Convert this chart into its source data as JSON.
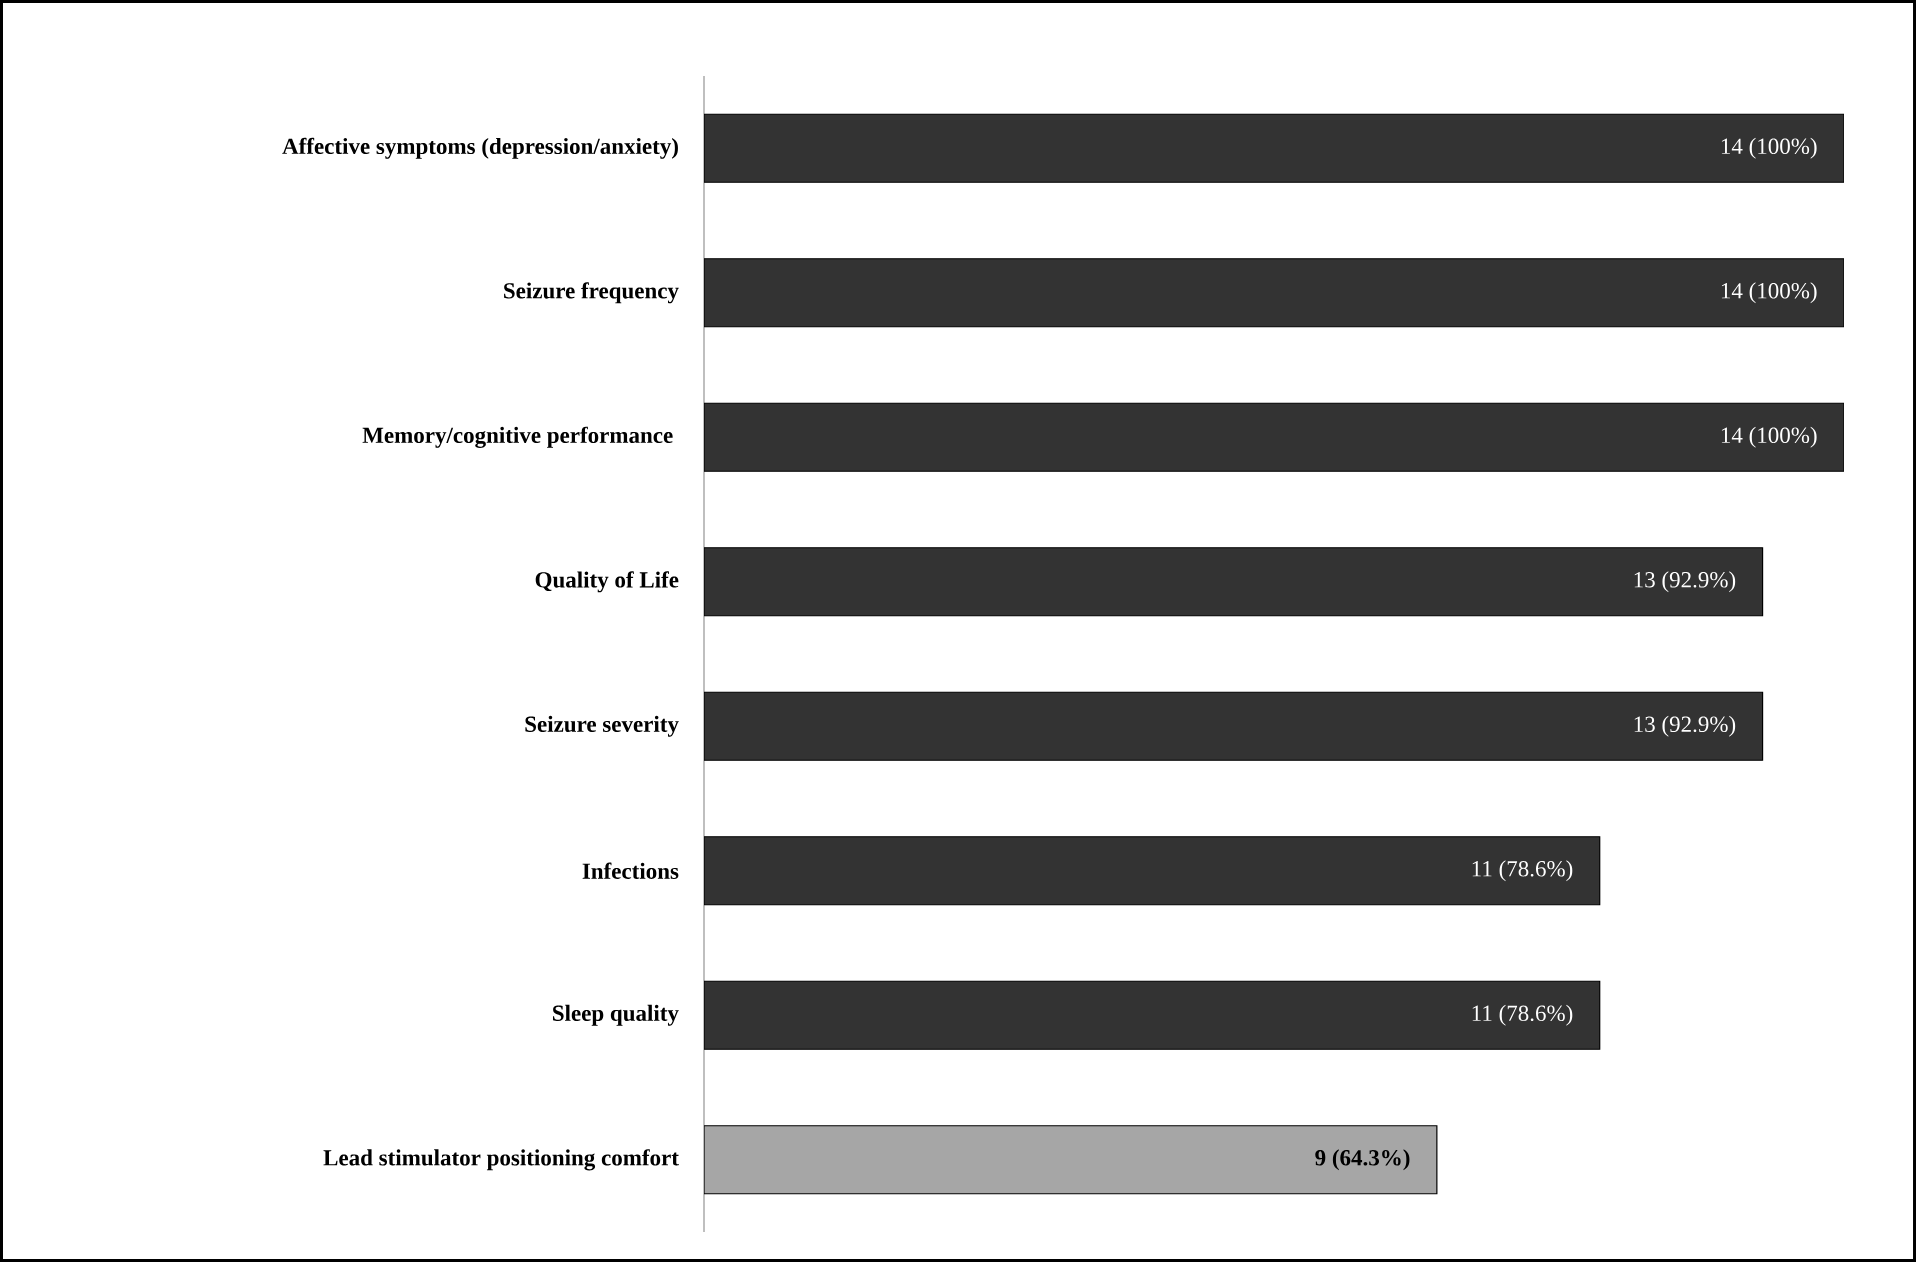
{
  "chart_data": {
    "type": "bar",
    "orientation": "horizontal",
    "categories": [
      "Affective symptoms (depression/anxiety)",
      "Seizure frequency",
      "Memory/cognitive performance ",
      "Quality of Life",
      "Seizure severity",
      "Infections",
      "Sleep quality",
      "Lead stimulator positioning comfort"
    ],
    "values": [
      14,
      14,
      14,
      13,
      13,
      11,
      11,
      9
    ],
    "colors": [
      "#333333",
      "#333333",
      "#333333",
      "#333333",
      "#333333",
      "#333333",
      "#333333",
      "#a6a6a6"
    ],
    "value_labels": [
      "14 (100%)",
      "14 (100%)",
      "14 (100%)",
      "13 (92.9%)",
      "13 (92.9%)",
      "11 (78.6%)",
      "11 (78.6%)",
      "9 (64.3%)"
    ]
  }
}
